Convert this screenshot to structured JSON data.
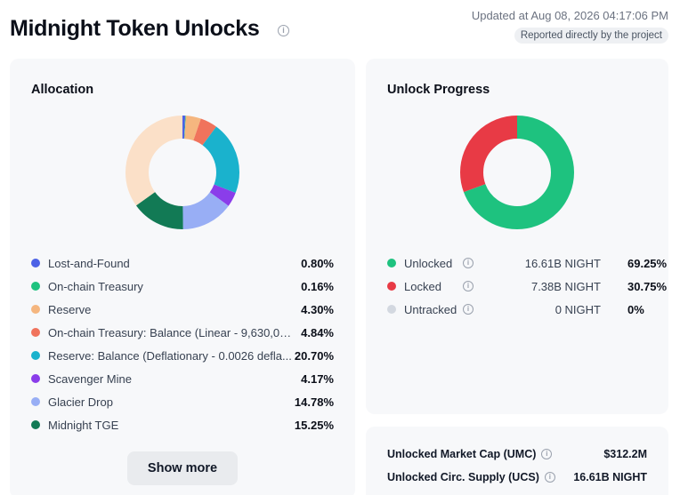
{
  "header": {
    "title": "Midnight Token Unlocks",
    "updated": "Updated at Aug 08, 2026 04:17:06 PM",
    "reported": "Reported directly by the project"
  },
  "allocation": {
    "title": "Allocation",
    "items": [
      {
        "label": "Lost-and-Found",
        "pct": "0.80%",
        "value": 0.8,
        "color": "#4c62e6"
      },
      {
        "label": "On-chain Treasury",
        "pct": "0.16%",
        "value": 0.16,
        "color": "#1ec27f"
      },
      {
        "label": "Reserve",
        "pct": "4.30%",
        "value": 4.3,
        "color": "#f5b67f"
      },
      {
        "label": "On-chain Treasury: Balance (Linear - 9,630,03...",
        "pct": "4.84%",
        "value": 4.84,
        "color": "#f0735c"
      },
      {
        "label": "Reserve: Balance (Deflationary - 0.0026 defla...",
        "pct": "20.70%",
        "value": 20.7,
        "color": "#1ab2cd"
      },
      {
        "label": "Scavenger Mine",
        "pct": "4.17%",
        "value": 4.17,
        "color": "#8a3dea"
      },
      {
        "label": "Glacier Drop",
        "pct": "14.78%",
        "value": 14.78,
        "color": "#98aef5"
      },
      {
        "label": "Midnight TGE",
        "pct": "15.25%",
        "value": 15.25,
        "color": "#127a55"
      }
    ],
    "remainder_color": "#fbe0c8",
    "show_more": "Show more"
  },
  "unlock": {
    "title": "Unlock Progress",
    "items": [
      {
        "label": "Unlocked",
        "amount": "16.61B NIGHT",
        "pct": "69.25%",
        "value": 69.25,
        "color": "#1ec27f"
      },
      {
        "label": "Locked",
        "amount": "7.38B NIGHT",
        "pct": "30.75%",
        "value": 30.75,
        "color": "#e83a45"
      },
      {
        "label": "Untracked",
        "amount": "0 NIGHT",
        "pct": "0%",
        "value": 0,
        "color": "#d3d8e0"
      }
    ]
  },
  "market": {
    "umc_label": "Unlocked Market Cap (UMC)",
    "umc_value": "$312.2M",
    "ucs_label": "Unlocked Circ. Supply (UCS)",
    "ucs_value": "16.61B NIGHT"
  }
}
